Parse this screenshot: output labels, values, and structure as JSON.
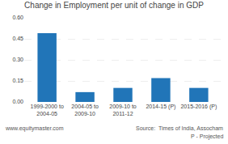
{
  "chart_data": {
    "type": "bar",
    "title": "Change in Employment per unit of change in GDP",
    "categories": [
      "1999-2000 to\n2004-05",
      "2004-05 to\n2009-10",
      "2009-10 to\n2011-12",
      "2014-15 (P)",
      "2015-2016 (P)"
    ],
    "values": [
      0.49,
      0.07,
      0.1,
      0.17,
      0.1
    ],
    "color": "#2175b8",
    "ylim": [
      0,
      0.6
    ],
    "yticks": [
      {
        "value": 0,
        "label": "0.00"
      },
      {
        "value": 0.15,
        "label": "0.15"
      },
      {
        "value": 0.3,
        "label": "0.30"
      },
      {
        "value": 0.45,
        "label": "0.45"
      },
      {
        "value": 0.6,
        "label": "0.60"
      }
    ],
    "grid": true,
    "annotations": [
      "www.equitymaster.com",
      "Source:  Times of India, Assocham",
      "P - Projected"
    ]
  }
}
